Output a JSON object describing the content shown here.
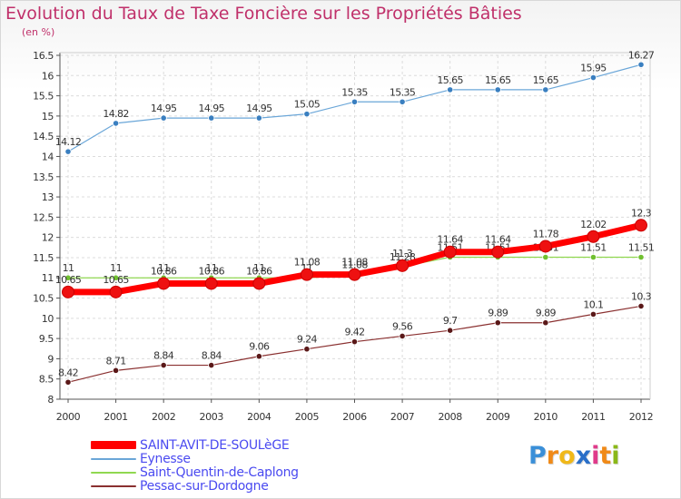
{
  "title": "Evolution du Taux de Taxe Foncière sur les Propriétés Bâties",
  "unit_label": "(en %)",
  "logo": {
    "letters": [
      "P",
      "r",
      "o",
      "x",
      "i",
      "t",
      "i"
    ],
    "colors": [
      "#3a8fd8",
      "#f08a18",
      "#f0b818",
      "#2a6fc8",
      "#e03a8a",
      "#f08a18",
      "#8ab818"
    ]
  },
  "chart_data": {
    "type": "line",
    "title": "Evolution du Taux de Taxe Foncière sur les Propriétés Bâties",
    "ylabel": "(en %)",
    "xlabel": "",
    "categories": [
      "2000",
      "2001",
      "2002",
      "2003",
      "2004",
      "2005",
      "2006",
      "2007",
      "2008",
      "2009",
      "2010",
      "2011",
      "2012"
    ],
    "ylim": [
      8,
      16.5
    ],
    "yticks": [
      "8",
      "8.5",
      "9",
      "9.5",
      "10",
      "10.5",
      "11",
      "11.5",
      "12",
      "12.5",
      "13",
      "13.5",
      "14",
      "14.5",
      "15",
      "15.5",
      "16",
      "16.5"
    ],
    "series": [
      {
        "name": "Eynesse",
        "color": "#6aa6d8",
        "marker": "#3a7fc0",
        "values": [
          14.12,
          14.82,
          14.95,
          14.95,
          14.95,
          15.05,
          15.35,
          15.35,
          15.65,
          15.65,
          15.65,
          15.95,
          16.27
        ],
        "labels": [
          "14.12",
          "14.82",
          "14.95",
          "14.95",
          "14.95",
          "15.05",
          "15.35",
          "15.35",
          "15.65",
          "15.65",
          "15.65",
          "15.95",
          "16.27"
        ]
      },
      {
        "name": "Saint-Quentin-de-Caplong",
        "color": "#90d850",
        "marker": "#70c030",
        "values": [
          11,
          11,
          11,
          11,
          11,
          11,
          11.08,
          11.28,
          11.51,
          11.51,
          11.51,
          11.51,
          11.51
        ],
        "labels": [
          "11",
          "11",
          "11",
          "11",
          "11",
          "11",
          "11.08",
          "11.28",
          "11.51",
          "11.51",
          "11.51",
          "11.51",
          "11.51"
        ]
      },
      {
        "name": "Pessac-sur-Dordogne",
        "color": "#8a3030",
        "marker": "#5a1818",
        "values": [
          8.42,
          8.71,
          8.84,
          8.84,
          9.06,
          9.24,
          9.42,
          9.56,
          9.7,
          9.89,
          9.89,
          10.1,
          10.3
        ],
        "labels": [
          "8.42",
          "8.71",
          "8.84",
          "8.84",
          "9.06",
          "9.24",
          "9.42",
          "9.56",
          "9.7",
          "9.89",
          "9.89",
          "10.1",
          "10.3"
        ]
      },
      {
        "name": "SAINT-AVIT-DE-SOULèGE",
        "color": "#ff0000",
        "marker": "#ee1111",
        "thick": true,
        "values": [
          10.65,
          10.65,
          10.86,
          10.86,
          10.86,
          11.08,
          11.08,
          11.3,
          11.64,
          11.64,
          11.78,
          12.02,
          12.3
        ],
        "labels": [
          "10.65",
          "10.65",
          "10.86",
          "10.86",
          "10.86",
          "11.08",
          "11.08",
          "11.3",
          "11.64",
          "11.64",
          "11.78",
          "12.02",
          "12.3"
        ]
      }
    ]
  },
  "legend": [
    {
      "label": "SAINT-AVIT-DE-SOULèGE",
      "color": "#ff0000",
      "thick": true
    },
    {
      "label": "Eynesse",
      "color": "#6aa6d8",
      "thick": false
    },
    {
      "label": "Saint-Quentin-de-Caplong",
      "color": "#90d850",
      "thick": false
    },
    {
      "label": "Pessac-sur-Dordogne",
      "color": "#8a3030",
      "thick": false
    }
  ]
}
